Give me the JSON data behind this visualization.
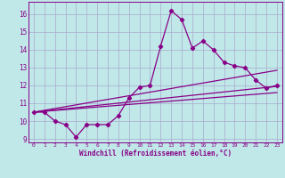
{
  "xlabel": "Windchill (Refroidissement éolien,°C)",
  "background_color": "#c0e8e8",
  "grid_color": "#aaaacc",
  "line_color": "#880088",
  "x_min": -0.5,
  "x_max": 23.5,
  "y_min": 8.8,
  "y_max": 16.7,
  "yticks": [
    9,
    10,
    11,
    12,
    13,
    14,
    15,
    16
  ],
  "xticks": [
    0,
    1,
    2,
    3,
    4,
    5,
    6,
    7,
    8,
    9,
    10,
    11,
    12,
    13,
    14,
    15,
    16,
    17,
    18,
    19,
    20,
    21,
    22,
    23
  ],
  "main_line_x": [
    0,
    1,
    2,
    3,
    4,
    5,
    6,
    7,
    8,
    9,
    10,
    11,
    12,
    13,
    14,
    15,
    16,
    17,
    18,
    19,
    20,
    21,
    22,
    23
  ],
  "main_line_y": [
    10.5,
    10.5,
    10.0,
    9.8,
    9.1,
    9.8,
    9.8,
    9.8,
    10.3,
    11.3,
    11.9,
    12.0,
    14.2,
    16.2,
    15.7,
    14.1,
    14.5,
    14.0,
    13.3,
    13.1,
    13.0,
    12.3,
    11.85,
    12.0
  ],
  "line2_x": [
    0,
    23
  ],
  "line2_y": [
    10.5,
    12.85
  ],
  "line3_x": [
    0,
    23
  ],
  "line3_y": [
    10.5,
    11.6
  ],
  "line4_x": [
    0,
    23
  ],
  "line4_y": [
    10.5,
    11.95
  ]
}
